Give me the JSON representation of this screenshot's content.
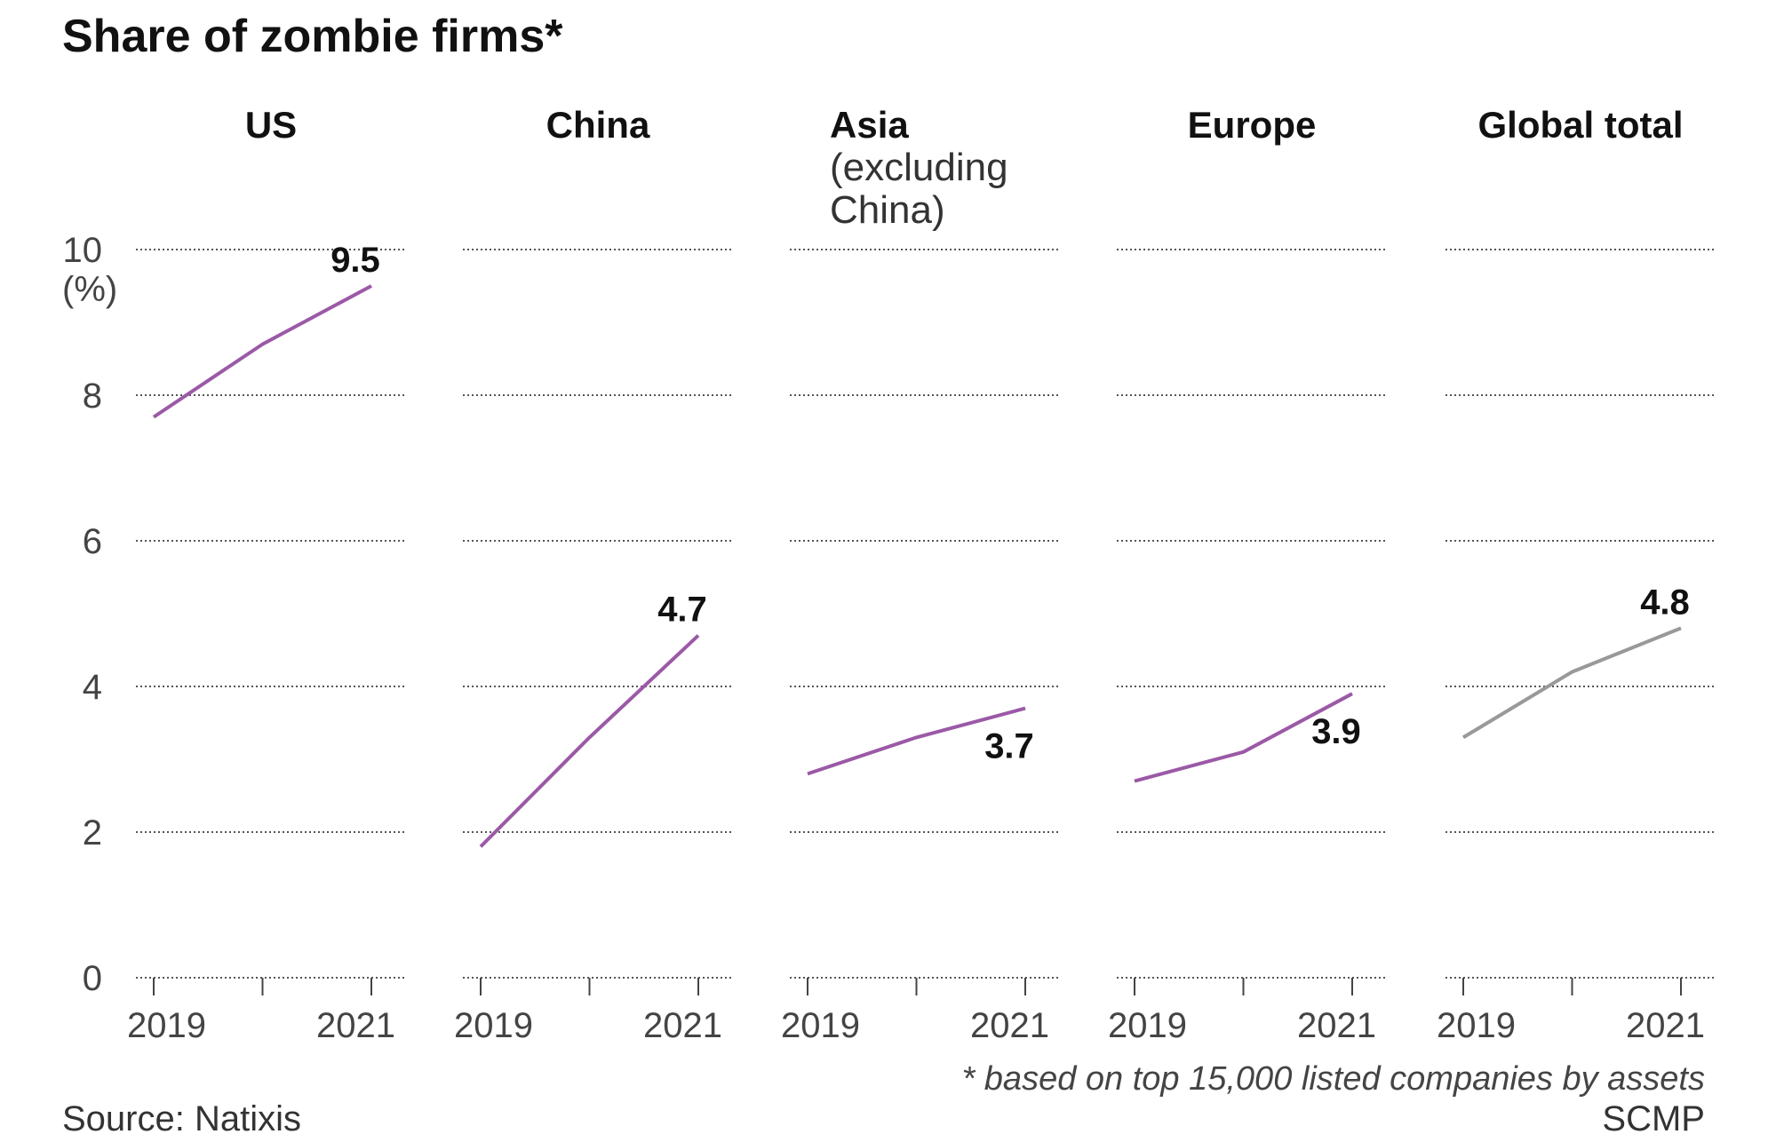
{
  "chart_data": {
    "type": "line",
    "title": "Share of zombie firms*",
    "ylabel": "(%)",
    "ylim": [
      0,
      10
    ],
    "yticks": [
      0,
      2,
      4,
      6,
      8,
      10
    ],
    "x": [
      2019,
      2020,
      2021
    ],
    "xtick_labels": [
      "2019",
      "",
      "2021"
    ],
    "grid": true,
    "series": [
      {
        "name": "US",
        "subtitle": [],
        "values": [
          7.7,
          8.7,
          9.5
        ],
        "end_label": "9.5",
        "color": "#9b59a6",
        "label_pos": "above"
      },
      {
        "name": "China",
        "subtitle": [],
        "values": [
          1.8,
          3.3,
          4.7
        ],
        "end_label": "4.7",
        "color": "#9b59a6",
        "label_pos": "above"
      },
      {
        "name": "Asia",
        "subtitle": [
          "(excluding",
          "China)"
        ],
        "values": [
          2.8,
          3.3,
          3.7
        ],
        "end_label": "3.7",
        "color": "#9b59a6",
        "label_pos": "below"
      },
      {
        "name": "Europe",
        "subtitle": [],
        "values": [
          2.7,
          3.1,
          3.9
        ],
        "end_label": "3.9",
        "color": "#9b59a6",
        "label_pos": "below"
      },
      {
        "name": "Global total",
        "subtitle": [],
        "values": [
          3.3,
          4.2,
          4.8
        ],
        "end_label": "4.8",
        "color": "#999999",
        "label_pos": "above"
      }
    ]
  },
  "footnote": "* based on top 15,000 listed companies by assets",
  "source": "Source: Natixis",
  "credit": "SCMP"
}
